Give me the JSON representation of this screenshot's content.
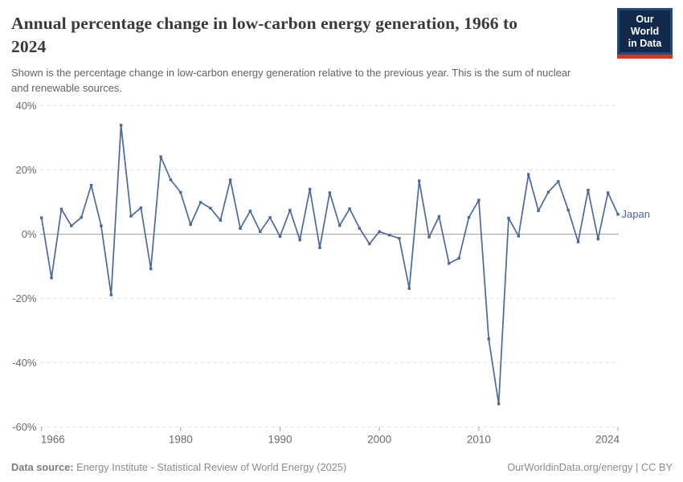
{
  "header": {
    "title_line1": "Annual percentage change in low-carbon energy generation, 1966 to",
    "title_line2": "2024",
    "subtitle_line1": "Shown is the percentage change in low-carbon energy generation relative to the previous year. This is the sum of nuclear",
    "subtitle_line2": "and renewable sources.",
    "logo_line1": "Our World",
    "logo_line2": "in Data"
  },
  "chart_data": {
    "type": "line",
    "title": "Annual percentage change in low-carbon energy generation, 1966 to 2024",
    "subtitle": "Shown is the percentage change in low-carbon energy generation relative to the previous year. This is the sum of nuclear and renewable sources.",
    "xlabel": "",
    "ylabel": "",
    "x_range": [
      1966,
      2024
    ],
    "ylim": [
      -60,
      40
    ],
    "y_ticks": [
      40,
      20,
      0,
      -20,
      -40,
      -60
    ],
    "y_tick_suffix": "%",
    "x_ticks": [
      1966,
      1980,
      1990,
      2000,
      2010,
      2024
    ],
    "grid": "horizontal-dashed",
    "legend_position": "series-end-label",
    "x": [
      1966,
      1967,
      1968,
      1969,
      1970,
      1971,
      1972,
      1973,
      1974,
      1975,
      1976,
      1977,
      1978,
      1979,
      1980,
      1981,
      1982,
      1983,
      1984,
      1985,
      1986,
      1987,
      1988,
      1989,
      1990,
      1991,
      1992,
      1993,
      1994,
      1995,
      1996,
      1997,
      1998,
      1999,
      2000,
      2001,
      2002,
      2003,
      2004,
      2005,
      2006,
      2007,
      2008,
      2009,
      2010,
      2011,
      2012,
      2013,
      2014,
      2015,
      2016,
      2017,
      2018,
      2019,
      2020,
      2021,
      2022,
      2023,
      2024
    ],
    "series": [
      {
        "name": "Japan",
        "color": "#4C699B",
        "values": [
          5.1,
          -13.6,
          7.8,
          2.6,
          5.2,
          15.2,
          2.6,
          -18.9,
          33.9,
          5.6,
          8.2,
          -10.8,
          24.1,
          16.9,
          13,
          3,
          9.9,
          8.1,
          4.3,
          16.9,
          1.8,
          7.2,
          0.8,
          5.2,
          -0.7,
          7.5,
          -1.8,
          14,
          -4.2,
          12.9,
          2.7,
          7.9,
          1.8,
          -3,
          0.8,
          -0.3,
          -1.3,
          -16.9,
          16.6,
          -0.9,
          5.5,
          -9.1,
          -7.5,
          5.2,
          10.6,
          -32.6,
          -52.8,
          5,
          -0.6,
          18.6,
          7.3,
          13.1,
          16.4,
          7.5,
          -2.4,
          13.7,
          -1.5,
          12.9,
          6.2
        ]
      }
    ],
    "colors": {
      "gridline": "#DBDBDB",
      "zero_line": "#A3A3A3",
      "tick_label": "#6b6b6b",
      "tick_mark": "#9aa0a3"
    }
  },
  "footer": {
    "datasource_label": "Data source:",
    "datasource_text": "Energy Institute - Statistical Review of World Energy (2025)",
    "credit": "OurWorldinData.org/energy | CC BY"
  }
}
